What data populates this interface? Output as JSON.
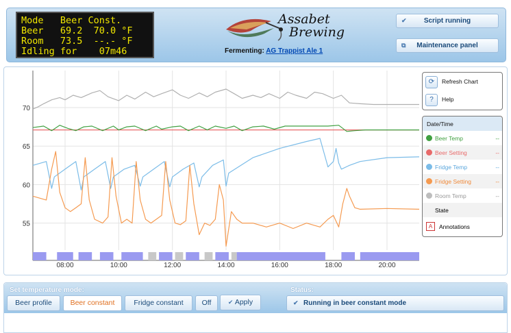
{
  "lcd": {
    "lines": [
      "Mode   Beer Const.",
      "Beer   69.2  70.0 °F",
      "Room   73.5  --.- °F",
      "Idling for    07m46"
    ]
  },
  "logo": {
    "line1": "Assabet",
    "line2": "Brewing"
  },
  "fermenting": {
    "label": "Fermenting:",
    "beer": "AG Trappist Ale 1"
  },
  "header_buttons": {
    "script": "Script running",
    "maintenance": "Maintenance panel"
  },
  "chart_controls": {
    "refresh": "Refresh Chart",
    "help": "Help"
  },
  "legend": {
    "header": "Date/Time",
    "items": [
      {
        "name": "Beer Temp",
        "value": "--",
        "color": "#41a041"
      },
      {
        "name": "Beer Setting",
        "value": "--",
        "color": "#e86a6a"
      },
      {
        "name": "Fridge Temp",
        "value": "--",
        "color": "#7bbce8"
      },
      {
        "name": "Fridge Setting",
        "value": "--",
        "color": "#f59a50"
      },
      {
        "name": "Room Temp",
        "value": "--",
        "color": "#bdbdbd"
      },
      {
        "name": "State",
        "value": "",
        "color": ""
      },
      {
        "name": "Annotations",
        "value": "",
        "color": "#cc3333"
      }
    ]
  },
  "chart_data": {
    "type": "line",
    "x_ticks": [
      "08:00",
      "10:00",
      "12:00",
      "14:00",
      "16:00",
      "18:00",
      "20:00"
    ],
    "x_tick_hours": [
      8,
      10,
      12,
      14,
      16,
      18,
      20
    ],
    "y_ticks": [
      55,
      60,
      65,
      70
    ],
    "xlim": [
      6.8,
      21.2
    ],
    "ylim": [
      51.5,
      74.8
    ],
    "grid": true,
    "series": [
      {
        "name": "Room Temp",
        "color": "#b0b0b0",
        "x": [
          6.8,
          7.0,
          7.2,
          7.5,
          7.8,
          8.0,
          8.3,
          8.6,
          9.0,
          9.3,
          9.6,
          10.0,
          10.3,
          10.6,
          11.0,
          11.3,
          11.6,
          12.0,
          12.3,
          12.6,
          13.0,
          13.3,
          13.6,
          14.0,
          14.3,
          14.6,
          15.0,
          15.3,
          15.6,
          16.0,
          16.3,
          16.6,
          17.0,
          17.3,
          17.6,
          18.0,
          18.3,
          18.6,
          19.0,
          19.5,
          20.0,
          20.5,
          21.2
        ],
        "y": [
          69.8,
          70.1,
          70.5,
          71.0,
          71.3,
          71.0,
          71.6,
          71.3,
          71.9,
          72.2,
          71.4,
          70.9,
          71.6,
          71.1,
          72.0,
          71.4,
          71.8,
          72.3,
          71.6,
          71.2,
          71.9,
          71.4,
          72.0,
          72.4,
          71.8,
          71.2,
          71.6,
          71.3,
          71.8,
          71.2,
          72.0,
          71.6,
          71.2,
          72.0,
          71.8,
          71.2,
          71.6,
          70.6,
          70.5,
          70.4,
          70.4,
          70.4,
          70.4
        ]
      },
      {
        "name": "Beer Setting",
        "color": "#e86a6a",
        "x": [
          6.8,
          21.2
        ],
        "y": [
          67.1,
          67.1
        ]
      },
      {
        "name": "Beer Temp",
        "color": "#41a041",
        "x": [
          6.8,
          7.2,
          7.5,
          7.8,
          8.1,
          8.4,
          8.7,
          9.0,
          9.4,
          9.8,
          10.0,
          10.3,
          10.6,
          11.0,
          11.4,
          11.6,
          12.0,
          12.3,
          12.6,
          13.0,
          13.3,
          13.6,
          14.0,
          14.3,
          14.6,
          15.0,
          15.4,
          15.8,
          16.2,
          16.6,
          17.0,
          17.4,
          17.8,
          18.2,
          18.5,
          18.8,
          19.2,
          20.0,
          21.2
        ],
        "y": [
          67.4,
          67.6,
          67.0,
          67.7,
          67.3,
          67.0,
          67.5,
          67.6,
          67.0,
          67.6,
          67.1,
          67.5,
          67.6,
          67.0,
          67.6,
          67.2,
          67.5,
          67.6,
          67.0,
          67.6,
          67.1,
          67.6,
          67.3,
          67.6,
          67.0,
          67.5,
          67.6,
          67.2,
          67.6,
          67.6,
          67.6,
          67.6,
          67.6,
          67.7,
          66.9,
          67.0,
          67.1,
          67.1,
          67.1
        ]
      },
      {
        "name": "Fridge Temp",
        "color": "#7bbce8",
        "x": [
          6.8,
          7.3,
          7.5,
          7.6,
          8.0,
          8.4,
          8.6,
          8.7,
          9.1,
          9.5,
          9.7,
          9.8,
          10.2,
          10.6,
          10.8,
          10.9,
          11.3,
          11.7,
          11.9,
          12.0,
          12.4,
          12.8,
          13.0,
          13.1,
          13.5,
          13.9,
          14.0,
          14.1,
          15.0,
          16.0,
          17.0,
          17.5,
          17.8,
          18.0,
          18.1,
          18.2,
          18.3,
          18.6,
          19.0,
          20.0,
          21.2
        ],
        "y": [
          62.5,
          63.0,
          59.5,
          61.0,
          62.0,
          63.0,
          59.3,
          61.0,
          62.0,
          63.0,
          59.5,
          61.0,
          62.0,
          62.5,
          59.8,
          61.0,
          62.0,
          63.0,
          59.7,
          61.0,
          62.0,
          62.8,
          59.7,
          61.0,
          62.5,
          63.2,
          59.8,
          61.5,
          63.5,
          64.7,
          65.6,
          66.0,
          62.3,
          63.0,
          64.7,
          62.8,
          62.0,
          62.5,
          63.0,
          63.5,
          63.6
        ]
      },
      {
        "name": "Fridge Setting",
        "color": "#f59a50",
        "x": [
          6.8,
          7.3,
          7.5,
          7.65,
          7.8,
          8.0,
          8.2,
          8.4,
          8.6,
          8.75,
          8.9,
          9.1,
          9.4,
          9.6,
          9.75,
          9.9,
          10.1,
          10.3,
          10.5,
          10.65,
          10.8,
          11.0,
          11.2,
          11.4,
          11.6,
          11.75,
          11.9,
          12.1,
          12.3,
          12.5,
          12.65,
          12.8,
          13.0,
          13.2,
          13.4,
          13.6,
          13.75,
          13.9,
          14.0,
          14.2,
          14.4,
          14.6,
          15.0,
          15.5,
          16.0,
          16.5,
          17.0,
          17.5,
          17.8,
          18.0,
          18.2,
          18.35,
          18.5,
          18.6,
          18.8,
          19.0,
          20.0,
          21.2
        ],
        "y": [
          58.5,
          58.0,
          62.0,
          64.3,
          59.0,
          57.0,
          56.5,
          57.0,
          57.5,
          63.5,
          58.0,
          55.5,
          55.0,
          55.8,
          63.5,
          58.5,
          55.0,
          55.5,
          55.0,
          63.0,
          58.0,
          55.5,
          55.0,
          55.5,
          56.0,
          63.0,
          58.0,
          55.0,
          54.8,
          55.3,
          62.5,
          57.5,
          53.5,
          55.0,
          54.7,
          55.5,
          60.0,
          58.0,
          52.0,
          56.5,
          55.5,
          55.0,
          55.0,
          54.5,
          55.0,
          54.3,
          55.0,
          54.5,
          55.5,
          56.0,
          54.5,
          57.5,
          59.5,
          58.5,
          57.0,
          56.8,
          56.9,
          56.8
        ]
      }
    ],
    "state_bar": {
      "color_heat": "#9a9af0",
      "color_idle": "#c8c8c8",
      "segments": [
        {
          "from": 6.8,
          "to": 7.3,
          "state": "cool"
        },
        {
          "from": 7.7,
          "to": 8.3,
          "state": "cool"
        },
        {
          "from": 8.5,
          "to": 9.0,
          "state": "cool"
        },
        {
          "from": 9.3,
          "to": 9.8,
          "state": "cool"
        },
        {
          "from": 10.1,
          "to": 10.9,
          "state": "cool"
        },
        {
          "from": 11.1,
          "to": 11.4,
          "state": "idle"
        },
        {
          "from": 11.5,
          "to": 12.0,
          "state": "cool"
        },
        {
          "from": 12.1,
          "to": 12.4,
          "state": "idle"
        },
        {
          "from": 12.5,
          "to": 13.0,
          "state": "cool"
        },
        {
          "from": 13.2,
          "to": 13.5,
          "state": "idle"
        },
        {
          "from": 13.6,
          "to": 14.1,
          "state": "cool"
        },
        {
          "from": 14.2,
          "to": 14.4,
          "state": "idle"
        },
        {
          "from": 14.4,
          "to": 17.7,
          "state": "cool"
        },
        {
          "from": 18.3,
          "to": 18.8,
          "state": "cool"
        },
        {
          "from": 19.0,
          "to": 21.2,
          "state": "cool"
        }
      ]
    }
  },
  "mode": {
    "title": "Set temperature mode:",
    "buttons": [
      "Beer profile",
      "Beer constant",
      "Fridge constant",
      "Off"
    ],
    "active": "Beer constant",
    "apply": "Apply"
  },
  "status": {
    "title": "Status:",
    "text": "Running in beer constant mode"
  }
}
